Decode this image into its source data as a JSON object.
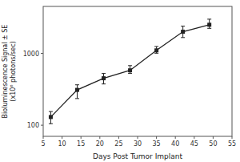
{
  "chart_data": {
    "type": "line",
    "x": [
      7,
      14,
      21,
      28,
      35,
      42,
      49
    ],
    "values": [
      130,
      310,
      450,
      580,
      1100,
      2000,
      2500
    ],
    "error_low": [
      25,
      75,
      75,
      55,
      95,
      340,
      270
    ],
    "error_high": [
      25,
      55,
      75,
      95,
      145,
      390,
      490
    ],
    "xlabel": "Days Post Tumor Implant",
    "ylabel": "Bioluminescence Signal ± SE\n(x10⁶ photons/sec)",
    "xlim": [
      5,
      55
    ],
    "ylim": [
      70,
      4500
    ],
    "xticks": [
      5,
      10,
      15,
      20,
      25,
      30,
      35,
      40,
      45,
      50,
      55
    ],
    "yticks": [
      100,
      1000
    ],
    "log": "y",
    "grid": false,
    "color": "#222222",
    "marker": "square",
    "line_style": "solid"
  }
}
